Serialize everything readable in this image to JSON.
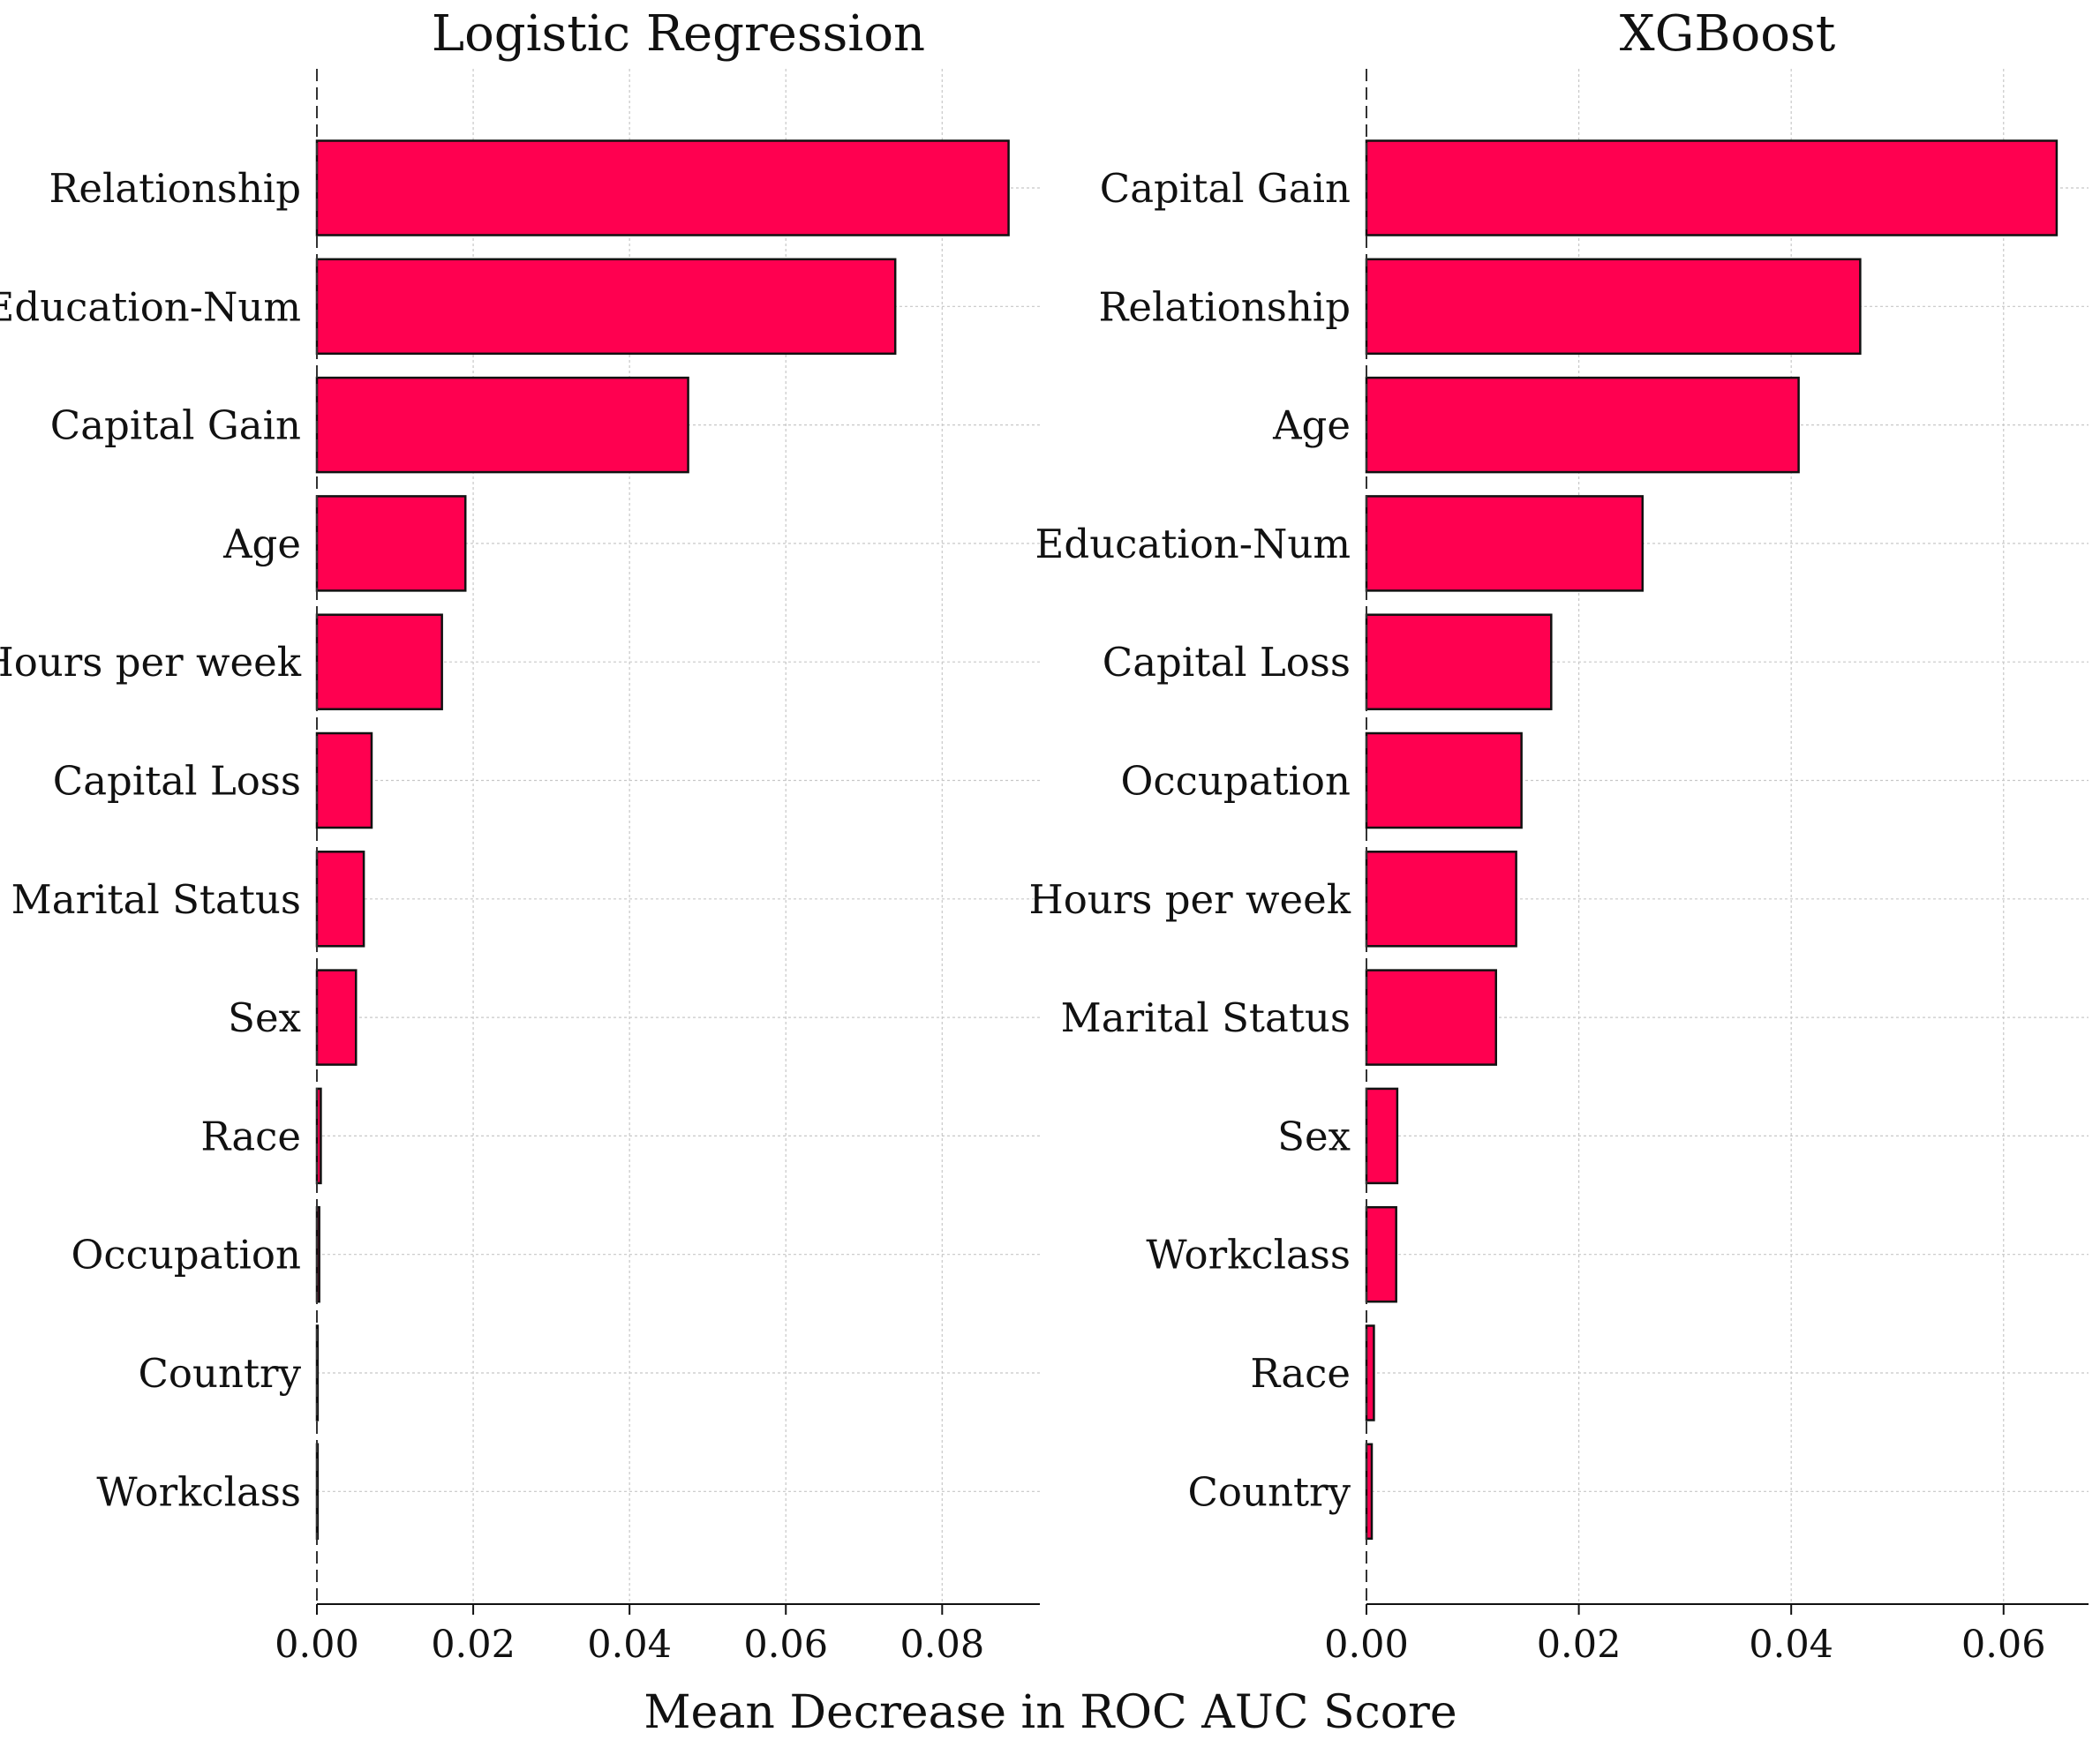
{
  "figure": {
    "xlabel": "Mean Decrease in ROC AUC Score",
    "bar_color": "#ff0050",
    "edge_color": "#111111"
  },
  "chart_data": [
    {
      "type": "bar",
      "orientation": "horizontal",
      "title": "Logistic Regression",
      "xlabel": "Mean Decrease in ROC AUC Score",
      "ylabel": "",
      "categories": [
        "Relationship",
        "Education-Num",
        "Capital Gain",
        "Age",
        "Hours per week",
        "Capital Loss",
        "Marital Status",
        "Sex",
        "Race",
        "Occupation",
        "Country",
        "Workclass"
      ],
      "values": [
        0.0885,
        0.074,
        0.0475,
        0.019,
        0.016,
        0.007,
        0.006,
        0.005,
        0.0005,
        0.0003,
        0.0001,
        0.0001
      ],
      "xlim": [
        0,
        0.0925
      ],
      "xticks": [
        0.0,
        0.02,
        0.04,
        0.06,
        0.08
      ],
      "xtick_labels": [
        "0.00",
        "0.02",
        "0.04",
        "0.06",
        "0.08"
      ],
      "grid": true
    },
    {
      "type": "bar",
      "orientation": "horizontal",
      "title": "XGBoost",
      "xlabel": "Mean Decrease in ROC AUC Score",
      "ylabel": "",
      "categories": [
        "Capital Gain",
        "Relationship",
        "Age",
        "Education-Num",
        "Capital Loss",
        "Occupation",
        "Hours per week",
        "Marital Status",
        "Sex",
        "Workclass",
        "Race",
        "Country"
      ],
      "values": [
        0.065,
        0.0465,
        0.0407,
        0.026,
        0.0174,
        0.0146,
        0.0141,
        0.0122,
        0.0029,
        0.0028,
        0.0007,
        0.0005
      ],
      "xlim": [
        0,
        0.068
      ],
      "xticks": [
        0.0,
        0.02,
        0.04,
        0.06
      ],
      "xtick_labels": [
        "0.00",
        "0.02",
        "0.04",
        "0.06"
      ],
      "grid": true
    }
  ]
}
